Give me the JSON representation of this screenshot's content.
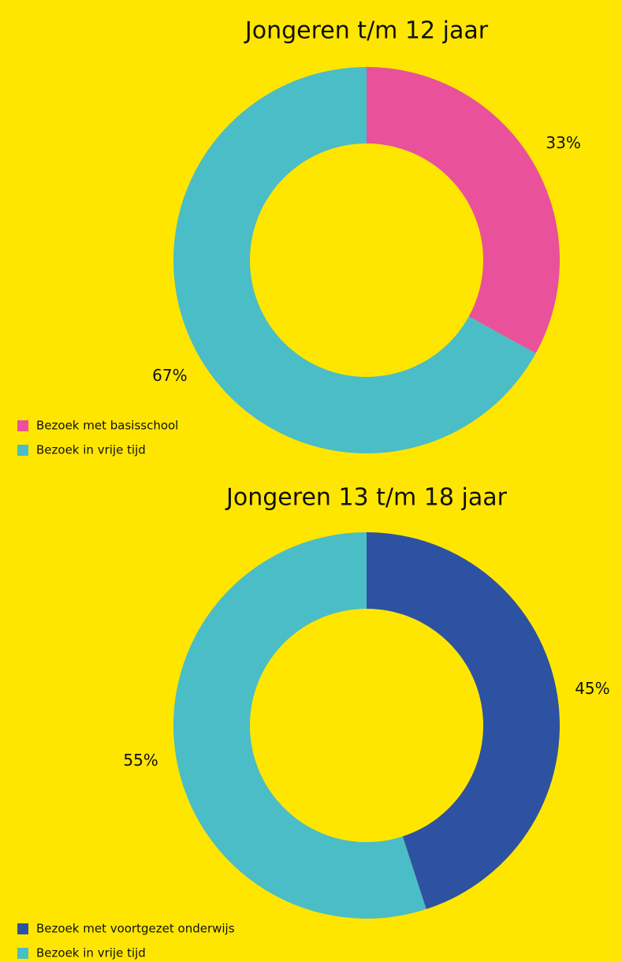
{
  "chart_data": [
    {
      "type": "pie",
      "title": "Jongeren t/m 12 jaar",
      "categories": [
        "Bezoek met basisschool",
        "Bezoek in vrije tijd"
      ],
      "values": [
        33,
        67
      ],
      "value_labels": [
        "33%",
        "67%"
      ],
      "colors": [
        "#e9519b",
        "#4bbdc6"
      ]
    },
    {
      "type": "pie",
      "title": "Jongeren 13 t/m 18 jaar",
      "categories": [
        "Bezoek met voortgezet onderwijs",
        "Bezoek in vrije tijd"
      ],
      "values": [
        45,
        55
      ],
      "value_labels": [
        "45%",
        "55%"
      ],
      "colors": [
        "#2d52a1",
        "#4bbdc6"
      ]
    }
  ]
}
